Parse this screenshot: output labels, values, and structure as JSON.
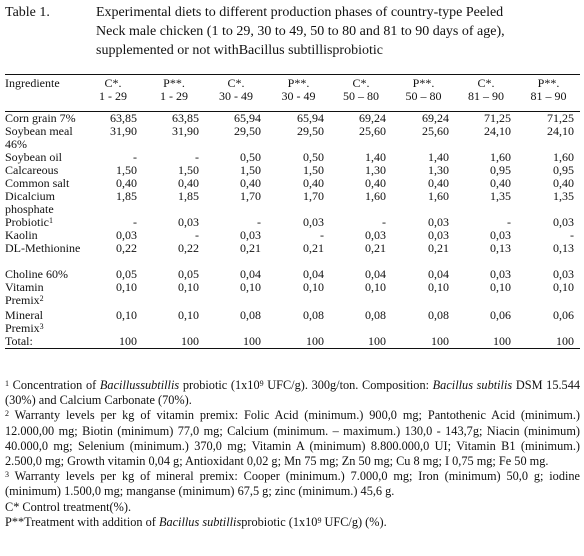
{
  "caption": {
    "label": "Table 1.",
    "lines": [
      "Experimental diets to different production phases of country-type Peeled",
      "Neck male chicken (1 to 29, 30 to 49, 50 to 80 and 81 to 90 days of age),",
      "supplemented or not withBacillus subtillisprobiotic"
    ]
  },
  "table": {
    "header": {
      "first": "Ingrediente",
      "cols": [
        {
          "top": "C*.",
          "bottom": "1 - 29"
        },
        {
          "top": "P**.",
          "bottom": "1 - 29"
        },
        {
          "top": "C*.",
          "bottom": "30 - 49"
        },
        {
          "top": "P**.",
          "bottom": "30 - 49"
        },
        {
          "top": "C*.",
          "bottom": "50 – 80"
        },
        {
          "top": "P**.",
          "bottom": "50 – 80"
        },
        {
          "top": "C*.",
          "bottom": "81 – 90"
        },
        {
          "top": "P**.",
          "bottom": "81 – 90"
        }
      ]
    },
    "rows": [
      {
        "name": "Corn grain 7%",
        "sup": "",
        "values": [
          "63,85",
          "63,85",
          "65,94",
          "65,94",
          "69,24",
          "69,24",
          "71,25",
          "71,25"
        ]
      },
      {
        "name": "Soybean meal 46%",
        "sup": "",
        "values": [
          "31,90",
          "31,90",
          "29,50",
          "29,50",
          "25,60",
          "25,60",
          "24,10",
          "24,10"
        ]
      },
      {
        "name": "Soybean oil",
        "sup": "",
        "values": [
          "-",
          "-",
          "0,50",
          "0,50",
          "1,40",
          "1,40",
          "1,60",
          "1,60"
        ]
      },
      {
        "name": "Calcareous",
        "sup": "",
        "values": [
          "1,50",
          "1,50",
          "1,50",
          "1,50",
          "1,30",
          "1,30",
          "0,95",
          "0,95"
        ]
      },
      {
        "name": "Common salt",
        "sup": "",
        "values": [
          "0,40",
          "0,40",
          "0,40",
          "0,40",
          "0,40",
          "0,40",
          "0,40",
          "0,40"
        ]
      },
      {
        "name": "Dicalcium phosphate",
        "sup": "",
        "values": [
          "1,85",
          "1,85",
          "1,70",
          "1,70",
          "1,60",
          "1,60",
          "1,35",
          "1,35"
        ]
      },
      {
        "name": "Probiotic",
        "sup": "1",
        "values": [
          "-",
          "0,03",
          "-",
          "0,03",
          "-",
          "0,03",
          "-",
          "0,03"
        ]
      },
      {
        "name": "Kaolin",
        "sup": "",
        "values": [
          "0,03",
          "-",
          "0,03",
          "-",
          "0,03",
          "0,03",
          "0,03",
          "-"
        ]
      },
      {
        "name": "DL-Methionine",
        "sup": "",
        "values": [
          "0,22",
          "0,22",
          "0,21",
          "0,21",
          "0,21",
          "0,21",
          "0,13",
          "0,13"
        ]
      },
      {
        "name": "Choline 60%",
        "sup": "",
        "values": [
          "0,05",
          "0,05",
          "0,04",
          "0,04",
          "0,04",
          "0,04",
          "0,03",
          "0,03"
        ]
      },
      {
        "name": "Vitamin Premix",
        "sup": "2",
        "values": [
          "0,10",
          "0,10",
          "0,10",
          "0,10",
          "0,10",
          "0,10",
          "0,10",
          "0,10"
        ]
      },
      {
        "name": "Mineral Premix",
        "sup": "3",
        "values": [
          "0,10",
          "0,10",
          "0,08",
          "0,08",
          "0,08",
          "0,08",
          "0,06",
          "0,06"
        ]
      },
      {
        "name": "Total:",
        "sup": "",
        "values": [
          "100",
          "100",
          "100",
          "100",
          "100",
          "100",
          "100",
          "100"
        ]
      }
    ]
  },
  "notes": {
    "n1": {
      "sup": "1",
      "a": " Concentration of ",
      "b_it": "Bacillussubtillis",
      "c": " probiotic (1x10",
      "c_sup": "9",
      "d": " UFC/g). 300g/ton. Composition: ",
      "e_it": "Bacillus subtilis",
      "f": " DSM 15.544 (30%) and Calcium Carbonate (70%)."
    },
    "n2": {
      "sup": "2",
      "text": " Warranty levels per kg of vitamin premix: Folic Acid (minimum.) 900,0 mg; Pantothenic Acid (minimum.) 12.000,00 mg; Biotin (minimum) 77,0 mg; Calcium (minimum. – maximum.) 130,0 - 143,7g; Niacin (minimum) 40.000,0 mg; Selenium (minimum.) 370,0 mg; Vitamin A (minimum) 8.800.000,0 UI; Vitamin B1 (minimum.) 2.500,0 mg; Growth vitamin 0,04 g; Antioxidant 0,02 g; Mn 75 mg; Zn 50 mg; Cu 8 mg; I 0,75 mg; Fe 50 mg."
    },
    "n3": {
      "sup": "3",
      "text": " Warranty levels per kg of mineral premix: Cooper (minimum.) 7.000,0 mg; Iron (minimum) 50,0 g; iodine (minimum) 1.500,0 mg; manganse (minimum) 67,5 g; zinc (minimum.) 45,6 g."
    },
    "control": "C* Control treatment(%).",
    "treatment": {
      "a": "P**Treatment with addition of ",
      "b_it": "Bacillus subtillis",
      "c": "probiotic (1x10",
      "c_sup": "9",
      "d": " UFC/g) (%)."
    }
  }
}
